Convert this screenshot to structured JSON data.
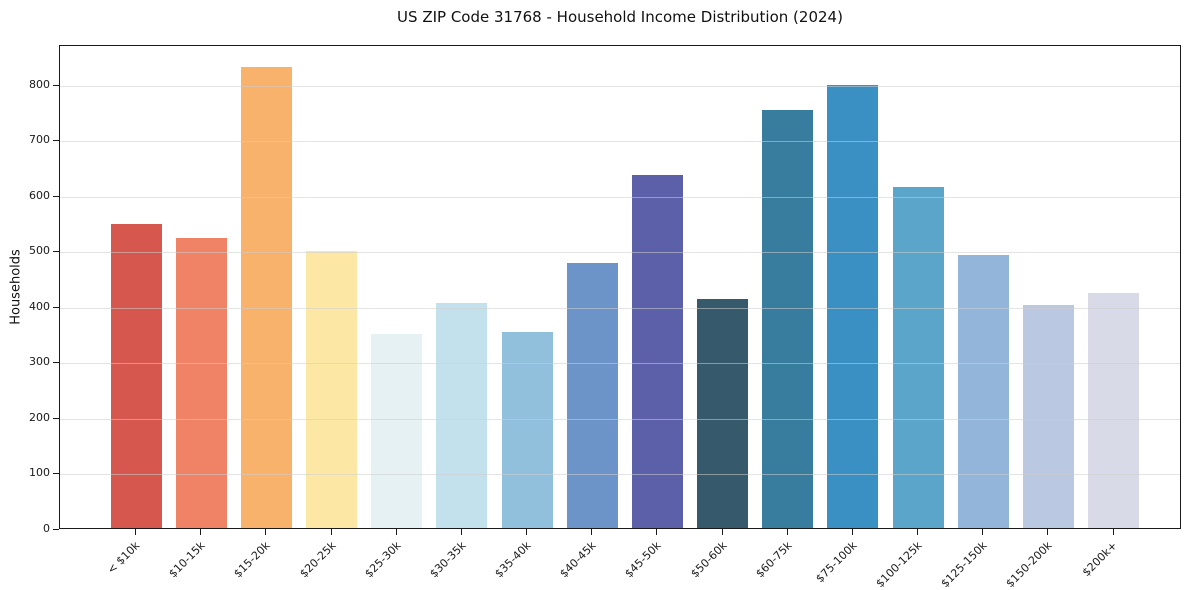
{
  "chart_data": {
    "type": "bar",
    "title": "US ZIP Code 31768 - Household Income Distribution (2024)",
    "xlabel": "",
    "ylabel": "Households",
    "categories": [
      "< $10k",
      "$10-15k",
      "$15-20k",
      "$20-25k",
      "$25-30k",
      "$30-35k",
      "$35-40k",
      "$40-45k",
      "$45-50k",
      "$50-60k",
      "$60-75k",
      "$75-100k",
      "$100-125k",
      "$125-150k",
      "$150-200k",
      "$200k+"
    ],
    "values": [
      547,
      522,
      831,
      499,
      349,
      406,
      354,
      478,
      636,
      413,
      753,
      799,
      615,
      491,
      402,
      423
    ],
    "bar_colors": [
      "#d5574e",
      "#f08266",
      "#f9b26c",
      "#fce8a4",
      "#e5f1f3",
      "#c3e1ec",
      "#90c0dc",
      "#6c94c9",
      "#5c60a9",
      "#36596b",
      "#387d9d",
      "#3a90c3",
      "#5aa5c9",
      "#93b5d9",
      "#bac9e1",
      "#d8dae7"
    ],
    "ylim": [
      0,
      872
    ],
    "yticks": [
      0,
      100,
      200,
      300,
      400,
      500,
      600,
      700,
      800
    ],
    "grid": "horizontal-light",
    "grid_color": "#e9e9e9",
    "x_tick_rotation": 45,
    "legend_position": "none",
    "axis_color": "#1a1a1a",
    "text_color": "#1a1a1a",
    "background_color": "#ffffff"
  }
}
